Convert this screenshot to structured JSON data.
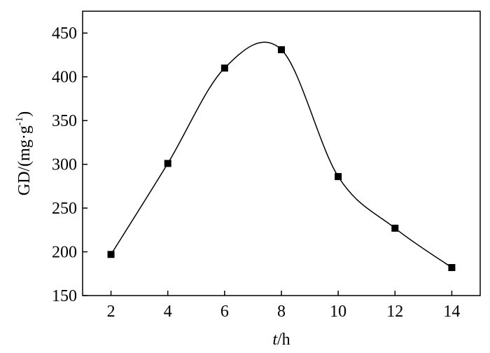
{
  "chart_data": {
    "type": "line",
    "xlabel": [
      "t",
      "/h"
    ],
    "ylabel": [
      "GD/(mg·g",
      "-1",
      ")"
    ],
    "x": [
      2,
      4,
      6,
      8,
      10,
      12,
      14
    ],
    "series": [
      {
        "color": "#000000",
        "values": [
          197,
          301,
          410,
          431,
          286,
          227,
          182
        ]
      }
    ],
    "xlim": [
      1,
      15
    ],
    "xticks": [
      2,
      4,
      6,
      8,
      10,
      12,
      14
    ],
    "ylim": [
      150,
      475
    ],
    "yticks": [
      150,
      200,
      250,
      300,
      350,
      400,
      450
    ],
    "smooth": true,
    "markers": "square"
  }
}
